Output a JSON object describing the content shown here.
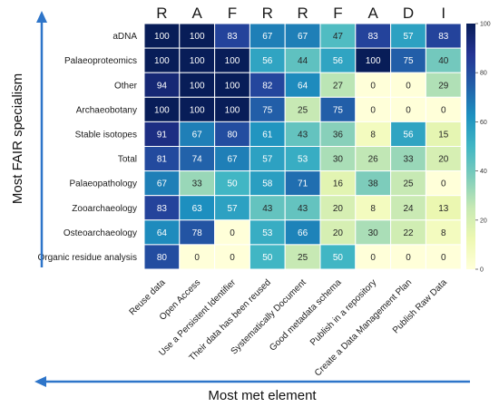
{
  "chart_data": {
    "type": "heatmap",
    "title": "",
    "xlabel": "Most met element",
    "ylabel": "Most FAIR specialism",
    "column_letters": [
      "R",
      "A",
      "F",
      "R",
      "R",
      "F",
      "A",
      "D",
      "I"
    ],
    "columns": [
      "Reuse data",
      "Open Access",
      "Use a Persistent Identifier",
      "Their data has been reused",
      "Systematically Document",
      "Good metadata schema",
      "Publish in a repository",
      "Create a Data Management Plan",
      "Publish Raw Data"
    ],
    "rows": [
      "aDNA",
      "Palaeoproteomics",
      "Other",
      "Archaeobotany",
      "Stable isotopes",
      "Total",
      "Palaeopathology",
      "Zooarchaeology",
      "Osteoarchaeology",
      "Organic residue analysis"
    ],
    "values": [
      [
        100,
        100,
        83,
        67,
        67,
        47,
        83,
        57,
        83
      ],
      [
        100,
        100,
        100,
        56,
        44,
        56,
        100,
        75,
        40
      ],
      [
        94,
        100,
        100,
        82,
        64,
        27,
        0,
        0,
        29
      ],
      [
        100,
        100,
        100,
        75,
        25,
        75,
        0,
        0,
        0
      ],
      [
        91,
        67,
        80,
        61,
        43,
        36,
        8,
        56,
        15
      ],
      [
        81,
        74,
        67,
        57,
        53,
        30,
        26,
        33,
        20
      ],
      [
        67,
        33,
        50,
        58,
        71,
        16,
        38,
        25,
        0
      ],
      [
        83,
        63,
        57,
        43,
        43,
        20,
        8,
        24,
        13
      ],
      [
        64,
        78,
        0,
        53,
        66,
        20,
        30,
        22,
        8
      ],
      [
        80,
        0,
        0,
        50,
        25,
        50,
        0,
        0,
        0
      ]
    ],
    "colorbar": {
      "min": 0,
      "max": 100,
      "ticks": [
        "0",
        "20",
        "40",
        "60",
        "80",
        "100"
      ],
      "colormap": "YlGnBu"
    },
    "arrow_color": "#2e75c9"
  }
}
